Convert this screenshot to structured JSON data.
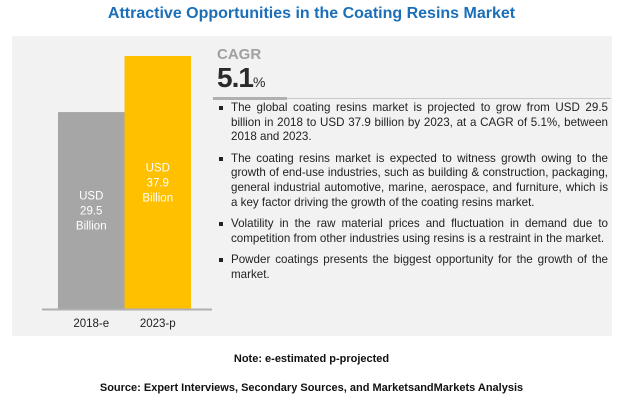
{
  "title": "Attractive Opportunities in the Coating Resins Market",
  "chart_data": {
    "type": "bar",
    "categories": [
      "2018-e",
      "2023-p"
    ],
    "values": [
      29.5,
      37.9
    ],
    "data_labels": [
      [
        "USD",
        "29.5",
        "Billion"
      ],
      [
        "USD",
        "37.9",
        "Billion"
      ]
    ],
    "colors": [
      "#a6a6a6",
      "#ffc000"
    ],
    "ylim": [
      0,
      38
    ],
    "grid": false
  },
  "cagr": {
    "label": "CAGR",
    "value": "5.1",
    "unit": "%"
  },
  "bullets": [
    "The global coating resins market is projected to grow from USD 29.5 billion in 2018 to USD 37.9 billion by 2023, at a CAGR of 5.1%, between 2018 and 2023.",
    "The coating resins market is expected to witness growth owing to the growth of end-use industries, such as building & construction, packaging, general industrial automotive, marine, aerospace, and furniture, which is a key factor driving the growth of the coating resins market.",
    "Volatility in the raw material prices and fluctuation in demand due to competition from other industries using resins is a restraint in the market.",
    "Powder coatings presents the biggest opportunity for the growth of the market."
  ],
  "note": "Note: e-estimated p-projected",
  "source": "Source: Expert Interviews, Secondary Sources, and MarketsandMarkets Analysis"
}
